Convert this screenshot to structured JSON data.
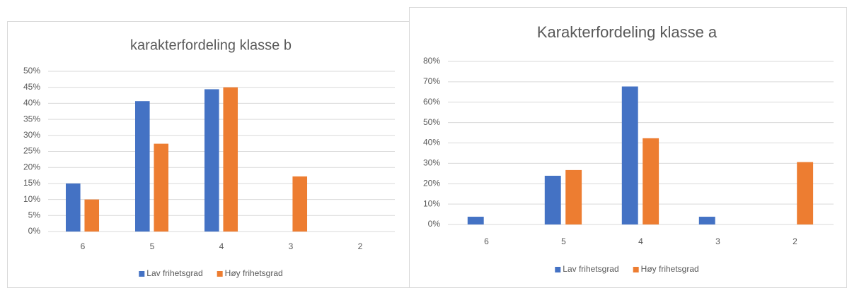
{
  "chart_data": [
    {
      "type": "bar",
      "title": "karakterfordeling klasse b",
      "categories": [
        "6",
        "5",
        "4",
        "3",
        "2"
      ],
      "series": [
        {
          "name": "Lav frihetsgrad",
          "color": "#4472c4",
          "values": [
            15,
            40.7,
            44.4,
            0,
            0
          ]
        },
        {
          "name": "Høy frihetsgrad",
          "color": "#ed7d31",
          "values": [
            10,
            27.4,
            45,
            17.2,
            0
          ]
        }
      ],
      "ylim": [
        0,
        50
      ],
      "yticks": [
        {
          "value": 0,
          "label": "0%"
        },
        {
          "value": 5,
          "label": "5%"
        },
        {
          "value": 10,
          "label": "10%"
        },
        {
          "value": 15,
          "label": "15%"
        },
        {
          "value": 20,
          "label": "20%"
        },
        {
          "value": 25,
          "label": "25%"
        },
        {
          "value": 30,
          "label": "30%"
        },
        {
          "value": 35,
          "label": "35%"
        },
        {
          "value": 40,
          "label": "40%"
        },
        {
          "value": 45,
          "label": "45%"
        },
        {
          "value": 50,
          "label": "50%"
        }
      ],
      "grid": true,
      "legend": "bottom"
    },
    {
      "type": "bar",
      "title": "Karakterfordeling klasse a",
      "categories": [
        "6",
        "5",
        "4",
        "3",
        "2"
      ],
      "series": [
        {
          "name": "Lav frihetsgrad",
          "color": "#4472c4",
          "values": [
            3.8,
            23.9,
            67.7,
            3.8,
            0
          ]
        },
        {
          "name": "Høy frihetsgrad",
          "color": "#ed7d31",
          "values": [
            0,
            26.7,
            42.3,
            0,
            30.6
          ]
        }
      ],
      "ylim": [
        0,
        80
      ],
      "yticks": [
        {
          "value": 0,
          "label": "0%"
        },
        {
          "value": 10,
          "label": "10%"
        },
        {
          "value": 20,
          "label": "20%"
        },
        {
          "value": 30,
          "label": "30%"
        },
        {
          "value": 40,
          "label": "40%"
        },
        {
          "value": 50,
          "label": "50%"
        },
        {
          "value": 60,
          "label": "60%"
        },
        {
          "value": 70,
          "label": "70%"
        },
        {
          "value": 80,
          "label": "80%"
        }
      ],
      "grid": true,
      "legend": "bottom"
    }
  ]
}
